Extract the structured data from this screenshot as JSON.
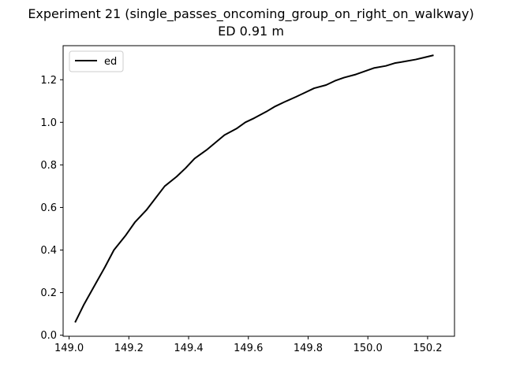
{
  "chart_data": {
    "type": "line",
    "title": "Experiment 21 (single_passes_oncoming_group_on_right_on_walkway)",
    "subtitle": "ED 0.91 m",
    "xlabel": "",
    "ylabel": "",
    "xlim": [
      148.98,
      150.29
    ],
    "ylim": [
      -0.005,
      1.36
    ],
    "xticks": [
      149.0,
      149.2,
      149.4,
      149.6,
      149.8,
      150.0,
      150.2
    ],
    "yticks": [
      0.0,
      0.2,
      0.4,
      0.6,
      0.8,
      1.0,
      1.2
    ],
    "grid": false,
    "legend": "top-left",
    "series": [
      {
        "name": "ed",
        "color": "#000000",
        "x": [
          149.02,
          149.05,
          149.09,
          149.12,
          149.15,
          149.19,
          149.22,
          149.26,
          149.29,
          149.32,
          149.36,
          149.39,
          149.42,
          149.46,
          149.49,
          149.52,
          149.56,
          149.59,
          149.62,
          149.66,
          149.69,
          149.72,
          149.76,
          149.79,
          149.82,
          149.86,
          149.89,
          149.92,
          149.96,
          149.99,
          150.02,
          150.06,
          150.09,
          150.12,
          150.16,
          150.19,
          150.22
        ],
        "y": [
          0.06,
          0.145,
          0.245,
          0.32,
          0.4,
          0.47,
          0.53,
          0.59,
          0.645,
          0.7,
          0.745,
          0.785,
          0.83,
          0.87,
          0.905,
          0.94,
          0.97,
          1.0,
          1.02,
          1.05,
          1.075,
          1.095,
          1.12,
          1.14,
          1.16,
          1.175,
          1.195,
          1.21,
          1.225,
          1.24,
          1.255,
          1.265,
          1.278,
          1.285,
          1.295,
          1.305,
          1.315
        ]
      }
    ]
  }
}
